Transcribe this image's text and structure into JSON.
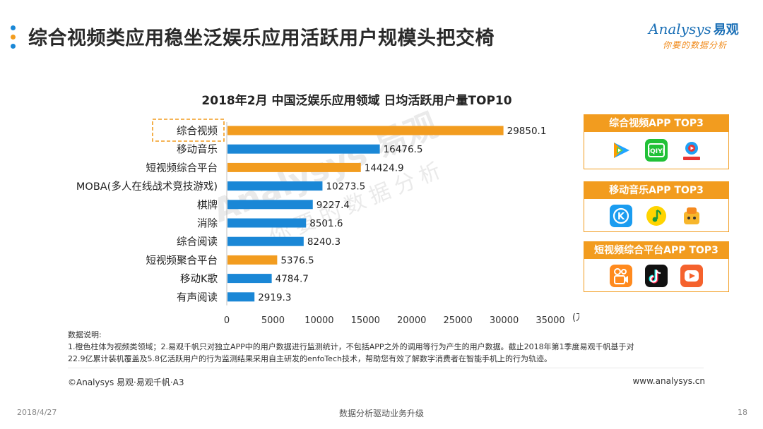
{
  "header": {
    "title": "综合视频类应用稳坐泛娱乐应用活跃用户规模头把交椅"
  },
  "logo": {
    "brand_en": "Analysys",
    "brand_cn": "易观",
    "tagline": "你要的数据分析"
  },
  "chart_data": {
    "type": "bar",
    "orientation": "horizontal",
    "title": "2018年2月 中国泛娱乐应用领域 日均活跃用户量TOP10",
    "categories": [
      "综合视频",
      "移动音乐",
      "短视频综合平台",
      "MOBA(多人在线战术竞技游戏)",
      "棋牌",
      "消除",
      "综合阅读",
      "短视频聚合平台",
      "移动K歌",
      "有声阅读"
    ],
    "values": [
      29850.1,
      16476.5,
      14424.9,
      10273.5,
      9227.4,
      8501.6,
      8240.3,
      5376.5,
      4784.7,
      2919.3
    ],
    "value_labels": [
      "29850.1",
      "16476.5",
      "14424.9",
      "10273.5",
      "9227.4",
      "8501.6",
      "8240.3",
      "5376.5",
      "4784.7",
      "2919.3"
    ],
    "highlight": [
      true,
      false,
      true,
      false,
      false,
      false,
      false,
      true,
      false,
      false
    ],
    "highlight_color": "#f29c1f",
    "base_color": "#1a87d6",
    "xlim": [
      0,
      35000
    ],
    "x_ticks": [
      "0",
      "5000",
      "10000",
      "15000",
      "20000",
      "25000",
      "30000",
      "35000"
    ],
    "x_unit": "(万人)",
    "boxed_category": "综合视频",
    "grid": false
  },
  "watermark": {
    "line1": "Analysys 易观",
    "line2": "你要的数据分析"
  },
  "app_boxes": [
    {
      "title": "综合视频APP TOP3",
      "icons": [
        "tencent-video-icon",
        "iqiyi-icon",
        "youku-icon"
      ]
    },
    {
      "title": "移动音乐APP TOP3",
      "icons": [
        "kugou-icon",
        "qq-music-icon",
        "kuwo-icon"
      ]
    },
    {
      "title": "短视频综合平台APP TOP3",
      "icons": [
        "kuaishou-icon",
        "douyin-icon",
        "huoshan-icon"
      ]
    }
  ],
  "notes": {
    "heading": "数据说明:",
    "line1": "1.橙色柱体为视频类领域；2.易观千帆只对独立APP中的用户数据进行监测统计，不包括APP之外的调用等行为产生的用户数据。截止2018年第1季度易观千帆基于对",
    "line2": "22.9亿累计装机覆盖及5.8亿活跃用户的行为监测结果采用自主研发的enfoTech技术，帮助您有效了解数字消费者在智能手机上的行为轨迹。"
  },
  "footer": {
    "copyright": "©Analysys 易观·易观千帆·A3",
    "website": "www.analysys.cn",
    "date": "2018/4/27",
    "center": "数据分析驱动业务升级",
    "page": "18"
  },
  "colors": {
    "accent_orange": "#f29c1f",
    "accent_blue": "#1a87d6"
  }
}
